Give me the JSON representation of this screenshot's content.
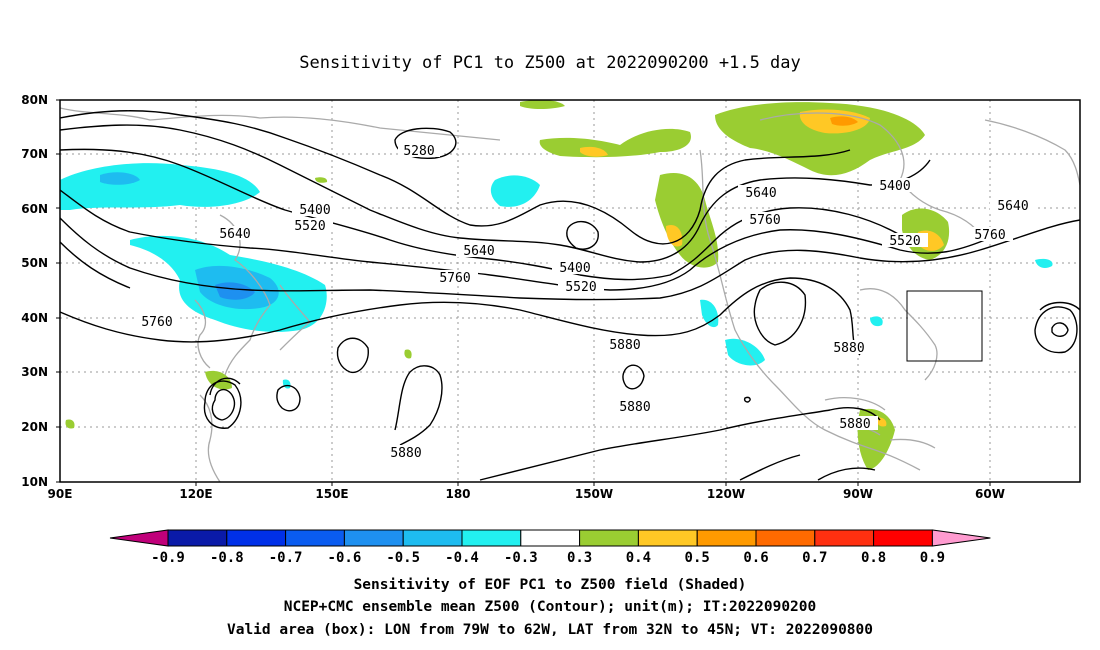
{
  "title": "Sensitivity of PC1 to Z500 at 2022090200 +1.5 day",
  "axes": {
    "lat_labels": [
      "80N",
      "70N",
      "60N",
      "50N",
      "40N",
      "30N",
      "20N",
      "10N"
    ],
    "lon_labels": [
      "90E",
      "120E",
      "150E",
      "180",
      "150W",
      "120W",
      "90W",
      "60W"
    ]
  },
  "contour_labels": {
    "c5280": "5280",
    "c5400a": "5400",
    "c5520a": "5520",
    "c5640a": "5640",
    "c5760a": "5760",
    "c5640b": "5640",
    "c5760b": "5760",
    "c5400b": "5400",
    "c5520b": "5520",
    "c5880a": "5880",
    "c5880b": "5880",
    "c5880c": "5880",
    "c5640c": "5640",
    "c5760c": "5760",
    "c5400c": "5400",
    "c5520c": "5520",
    "c5640d": "5640",
    "c5760d": "5760",
    "c5880d": "5880",
    "c5880e": "5880"
  },
  "colorbar": {
    "labels": [
      "-0.9",
      "-0.8",
      "-0.7",
      "-0.6",
      "-0.5",
      "-0.4",
      "-0.3",
      "0.3",
      "0.4",
      "0.5",
      "0.6",
      "0.7",
      "0.8",
      "0.9"
    ],
    "colors": [
      "#c0007a",
      "#0a1aa8",
      "#0030e8",
      "#0a5cf0",
      "#1e90f0",
      "#1ebcf0",
      "#22f0f0",
      "#ffffff",
      "#9acd32",
      "#ffc825",
      "#ff9a00",
      "#ff6a00",
      "#ff3010",
      "#ff0000",
      "#ff9bd0"
    ]
  },
  "caption": {
    "line1": "Sensitivity of EOF PC1 to Z500 field (Shaded)",
    "line2": "NCEP+CMC ensemble mean Z500 (Contour); unit(m); IT:2022090200",
    "line3": "Valid area (box): LON from 79W to 62W, LAT from 32N to 45N; VT: 2022090800"
  }
}
